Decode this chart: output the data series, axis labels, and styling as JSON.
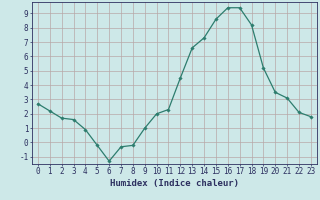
{
  "x": [
    0,
    1,
    2,
    3,
    4,
    5,
    6,
    7,
    8,
    9,
    10,
    11,
    12,
    13,
    14,
    15,
    16,
    17,
    18,
    19,
    20,
    21,
    22,
    23
  ],
  "y": [
    2.7,
    2.2,
    1.7,
    1.6,
    0.9,
    -0.2,
    -1.3,
    -0.3,
    -0.2,
    1.0,
    2.0,
    2.3,
    4.5,
    6.6,
    7.3,
    8.6,
    9.4,
    9.4,
    8.2,
    5.2,
    3.5,
    3.1,
    2.1,
    1.8
  ],
  "line_color": "#2d7d6e",
  "marker": "D",
  "marker_size": 1.8,
  "bg_color": "#cde8e8",
  "grid_color": "#b8a8a8",
  "xlabel": "Humidex (Indice chaleur)",
  "xlim": [
    -0.5,
    23.5
  ],
  "ylim": [
    -1.5,
    9.8
  ],
  "yticks": [
    -1,
    0,
    1,
    2,
    3,
    4,
    5,
    6,
    7,
    8,
    9
  ],
  "xticks": [
    0,
    1,
    2,
    3,
    4,
    5,
    6,
    7,
    8,
    9,
    10,
    11,
    12,
    13,
    14,
    15,
    16,
    17,
    18,
    19,
    20,
    21,
    22,
    23
  ],
  "xlabel_fontsize": 6.5,
  "tick_fontsize": 5.5,
  "xlabel_color": "#2d3060",
  "tick_label_color": "#2d3060",
  "axis_color": "#2d3060"
}
